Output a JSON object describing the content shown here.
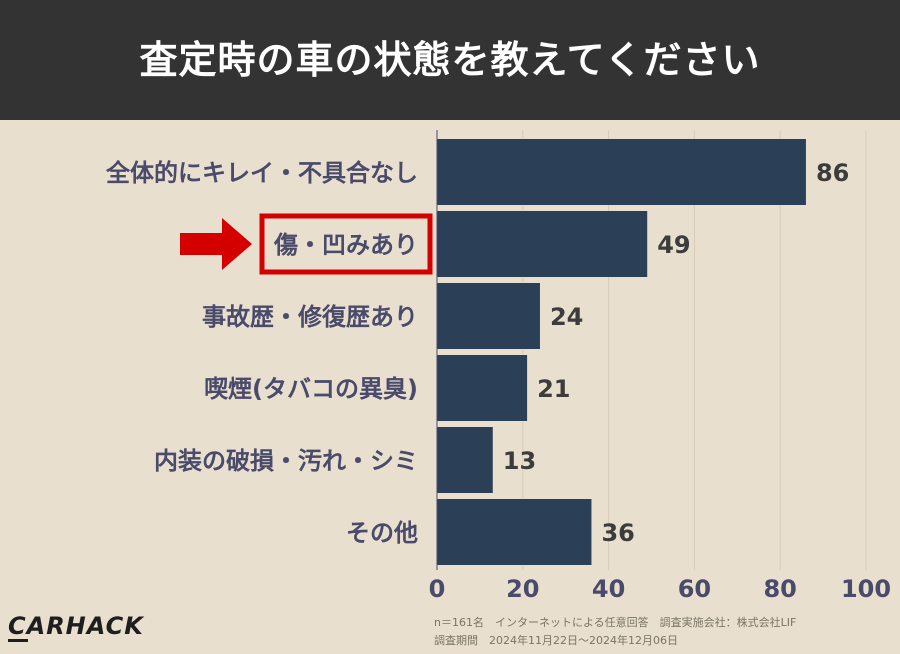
{
  "title": "査定時の車の状態を教えてください",
  "colors": {
    "header_bg": "#333333",
    "page_bg": "#e8dfce",
    "bar": "#2b3f56",
    "label_text": "#4a4a6a",
    "value_text": "#3c3c3c",
    "highlight": "#d40000",
    "grid": "#d6ccb8"
  },
  "chart_data": {
    "type": "bar",
    "orientation": "horizontal",
    "categories": [
      "全体的にキレイ・不具合なし",
      "傷・凹みあり",
      "事故歴・修復歴あり",
      "喫煙(タバコの異臭)",
      "内装の破損・汚れ・シミ",
      "その他"
    ],
    "values": [
      86,
      49,
      24,
      21,
      13,
      36
    ],
    "xlim": [
      0,
      100
    ],
    "x_ticks": [
      "0",
      "20",
      "40",
      "60",
      "80",
      "100"
    ],
    "grid": true,
    "highlight_category_index": 1
  },
  "annotations": {
    "highlight_arrow": "right-arrow-icon"
  },
  "footer": {
    "logo": "CARHACK",
    "source": "n＝161名　インターネットによる任意回答　調査実施会社：株式会社LIF",
    "period": "調査期間　2024年11月22日〜2024年12月06日"
  }
}
